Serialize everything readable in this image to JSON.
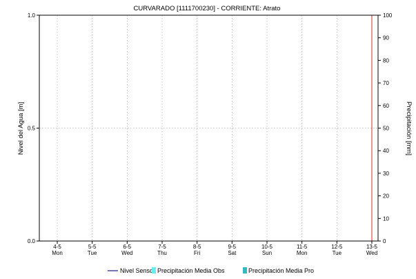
{
  "chart_data": {
    "type": "line",
    "title": "CURVARADO [1111700230] - CORRIENTE: Atrato",
    "ylabel_left": "Nivel del Agua [m]",
    "ylabel_right": "Precipitación [mm]",
    "y_left": {
      "min": 0,
      "max": 1.0,
      "ticks": [
        "0.0",
        "0.5",
        "1.0"
      ],
      "tick_values": [
        0,
        0.5,
        1.0
      ]
    },
    "y_right": {
      "min": 0,
      "max": 100,
      "ticks": [
        0,
        10,
        20,
        30,
        40,
        50,
        60,
        70,
        80,
        90,
        100
      ]
    },
    "x_categories": [
      {
        "day": "4-5",
        "weekday": "Mon"
      },
      {
        "day": "5-5",
        "weekday": "Tue"
      },
      {
        "day": "6-5",
        "weekday": "Wed"
      },
      {
        "day": "7-5",
        "weekday": "Thu"
      },
      {
        "day": "8-5",
        "weekday": "Fri"
      },
      {
        "day": "9-5",
        "weekday": "Sat"
      },
      {
        "day": "10-5",
        "weekday": "Sun"
      },
      {
        "day": "11-5",
        "weekday": "Mon"
      },
      {
        "day": "12-5",
        "weekday": "Tue"
      },
      {
        "day": "13-5",
        "weekday": "Wed"
      }
    ],
    "current_time_marker": {
      "at": "13-5",
      "color": "#e02020"
    },
    "grid": true,
    "series": [
      {
        "name": "Nivel Sensor",
        "kind": "line",
        "color": "#1a1a8c",
        "values": []
      },
      {
        "name": "Precipitación Media Obs",
        "kind": "bar",
        "color": "#66eeee",
        "values": []
      },
      {
        "name": "Precipitación Media Pro",
        "kind": "bar",
        "color": "#33bbbb",
        "values": []
      }
    ],
    "legend_position": "bottom"
  }
}
